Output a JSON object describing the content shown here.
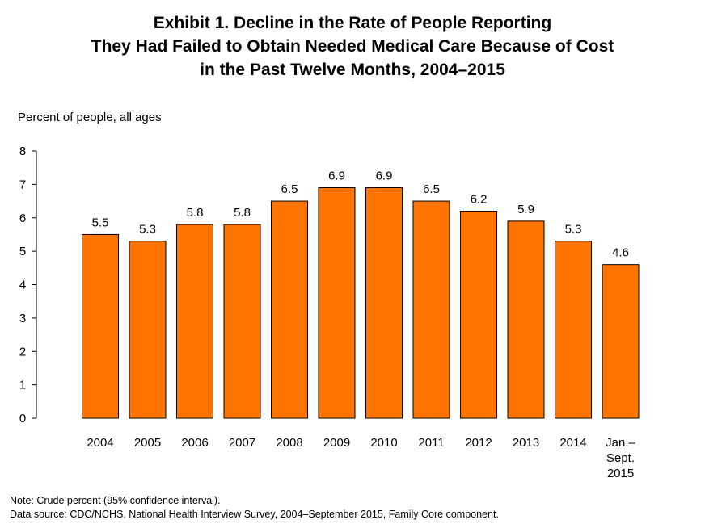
{
  "title_lines": [
    "Exhibit 1. Decline in the Rate of People Reporting",
    "They Had Failed to Obtain Needed Medical Care Because of Cost",
    "in the Past Twelve Months, 2004–2015"
  ],
  "notes": {
    "note": "Note: Crude percent (95% confidence interval).",
    "source": "Data source: CDC/NCHS, National Health Interview Survey, 2004–September 2015, Family Core component."
  },
  "colors": {
    "bar": "#FF7300",
    "bar_stroke": "#000000",
    "axis": "#000000"
  },
  "chart_data": {
    "type": "bar",
    "title": "Exhibit 1. Decline in the Rate of People Reporting They Had Failed to Obtain Needed Medical Care Because of Cost in the Past Twelve Months, 2004–2015",
    "ylabel": "Percent of people, all ages",
    "xlabel": "",
    "ylim": [
      0,
      8
    ],
    "yticks": [
      "0",
      "1",
      "2",
      "3",
      "4",
      "5",
      "6",
      "7",
      "8"
    ],
    "categories": [
      "2004",
      "2005",
      "2006",
      "2007",
      "2008",
      "2009",
      "2010",
      "2011",
      "2012",
      "2013",
      "2014",
      "Jan.–\nSept.\n2015"
    ],
    "values": [
      5.5,
      5.3,
      5.8,
      5.8,
      6.5,
      6.9,
      6.9,
      6.5,
      6.2,
      5.9,
      5.3,
      4.6
    ],
    "value_labels": [
      "5.5",
      "5.3",
      "5.8",
      "5.8",
      "6.5",
      "6.9",
      "6.9",
      "6.5",
      "6.2",
      "5.9",
      "5.3",
      "4.6"
    ],
    "grid": false,
    "legend": "none"
  }
}
